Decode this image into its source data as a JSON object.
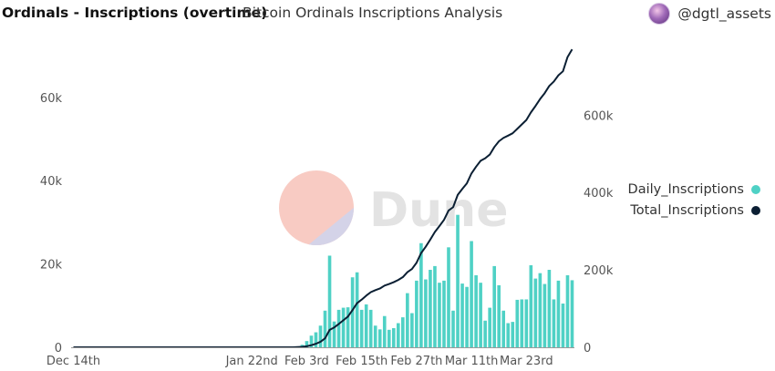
{
  "header": {
    "title": "Ordinals - Inscriptions (overtime)",
    "subtitle": "Bitcoin Ordinals Inscriptions Analysis",
    "user_handle": "@dgtl_assets",
    "avatar_icon": "avatar-icon"
  },
  "watermark": {
    "text": "Dune"
  },
  "colors": {
    "daily": "#4fd1c5",
    "total": "#0b1f33",
    "axis": "#9a9a9a",
    "tick_text": "#555555"
  },
  "chart_data": {
    "type": "bar",
    "x_start": "2022-12-14",
    "x_end": "2023-04-02",
    "x_ticks": [
      "Dec 14th",
      "Jan 22nd",
      "Feb 3rd",
      "Feb 15th",
      "Feb 27th",
      "Mar 11th",
      "Mar 23rd"
    ],
    "x_tick_dates": [
      "2022-12-14",
      "2023-01-22",
      "2023-02-03",
      "2023-02-15",
      "2023-02-27",
      "2023-03-11",
      "2023-03-23"
    ],
    "y_left": {
      "ticks": [
        "0",
        "20k",
        "40k",
        "60k"
      ],
      "tick_values": [
        0,
        20000,
        40000,
        60000
      ],
      "range": [
        0,
        72000
      ]
    },
    "y_right": {
      "ticks": [
        "0",
        "200k",
        "400k",
        "600k"
      ],
      "tick_values": [
        0,
        200000,
        400000,
        600000
      ],
      "range": [
        0,
        775000
      ]
    },
    "series": [
      {
        "name": "Daily_Inscriptions",
        "type": "bar",
        "axis": "left",
        "dates": [
          "2023-02-01",
          "2023-02-02",
          "2023-02-03",
          "2023-02-04",
          "2023-02-05",
          "2023-02-06",
          "2023-02-07",
          "2023-02-08",
          "2023-02-09",
          "2023-02-10",
          "2023-02-11",
          "2023-02-12",
          "2023-02-13",
          "2023-02-14",
          "2023-02-15",
          "2023-02-16",
          "2023-02-17",
          "2023-02-18",
          "2023-02-19",
          "2023-02-20",
          "2023-02-21",
          "2023-02-22",
          "2023-02-23",
          "2023-02-24",
          "2023-02-25",
          "2023-02-26",
          "2023-02-27",
          "2023-02-28",
          "2023-03-01",
          "2023-03-02",
          "2023-03-03",
          "2023-03-04",
          "2023-03-05",
          "2023-03-06",
          "2023-03-07",
          "2023-03-08",
          "2023-03-09",
          "2023-03-10",
          "2023-03-11",
          "2023-03-12",
          "2023-03-13",
          "2023-03-14",
          "2023-03-15",
          "2023-03-16",
          "2023-03-17",
          "2023-03-18",
          "2023-03-19",
          "2023-03-20",
          "2023-03-21",
          "2023-03-22",
          "2023-03-23",
          "2023-03-24",
          "2023-03-25",
          "2023-03-26",
          "2023-03-27",
          "2023-03-28",
          "2023-03-29",
          "2023-03-30",
          "2023-03-31",
          "2023-04-01",
          "2023-04-02"
        ],
        "values": [
          200,
          600,
          1500,
          2800,
          3600,
          5200,
          8800,
          22000,
          6200,
          9000,
          9500,
          9600,
          16800,
          18000,
          9000,
          10300,
          9000,
          5200,
          4300,
          7500,
          4200,
          4600,
          5800,
          7200,
          13000,
          8200,
          16000,
          25000,
          16300,
          18600,
          19500,
          15500,
          16000,
          24000,
          8800,
          31800,
          15300,
          14500,
          25500,
          17300,
          15500,
          6400,
          9500,
          19500,
          14900,
          8800,
          5800,
          6100,
          11400,
          11500,
          11500,
          19700,
          16500,
          17800,
          15200,
          18600,
          11500,
          16000,
          10500,
          17300,
          16100
        ]
      },
      {
        "name": "Total_Inscriptions",
        "type": "line",
        "axis": "right",
        "dates": [
          "2022-12-14",
          "2023-01-31",
          "2023-02-01",
          "2023-02-02",
          "2023-02-03",
          "2023-02-04",
          "2023-02-05",
          "2023-02-06",
          "2023-02-07",
          "2023-02-08",
          "2023-02-09",
          "2023-02-10",
          "2023-02-11",
          "2023-02-12",
          "2023-02-13",
          "2023-02-14",
          "2023-02-15",
          "2023-02-16",
          "2023-02-17",
          "2023-02-18",
          "2023-02-19",
          "2023-02-20",
          "2023-02-21",
          "2023-02-22",
          "2023-02-23",
          "2023-02-24",
          "2023-02-25",
          "2023-02-26",
          "2023-02-27",
          "2023-02-28",
          "2023-03-01",
          "2023-03-02",
          "2023-03-03",
          "2023-03-04",
          "2023-03-05",
          "2023-03-06",
          "2023-03-07",
          "2023-03-08",
          "2023-03-09",
          "2023-03-10",
          "2023-03-11",
          "2023-03-12",
          "2023-03-13",
          "2023-03-14",
          "2023-03-15",
          "2023-03-16",
          "2023-03-17",
          "2023-03-18",
          "2023-03-19",
          "2023-03-20",
          "2023-03-21",
          "2023-03-22",
          "2023-03-23",
          "2023-03-24",
          "2023-03-25",
          "2023-03-26",
          "2023-03-27",
          "2023-03-28",
          "2023-03-29",
          "2023-03-30",
          "2023-03-31",
          "2023-04-01",
          "2023-04-02"
        ],
        "values": [
          0,
          0,
          500,
          1200,
          2700,
          5500,
          9100,
          14300,
          23100,
          45100,
          51300,
          60300,
          69800,
          79400,
          96200,
          114200,
          123200,
          133500,
          142500,
          147700,
          152000,
          159500,
          163700,
          168300,
          174100,
          181300,
          194300,
          202500,
          218500,
          243500,
          259800,
          278400,
          297900,
          313400,
          329400,
          353400,
          362200,
          394000,
          409300,
          423800,
          449300,
          466600,
          482100,
          488500,
          498000,
          517500,
          532400,
          541200,
          547000,
          553100,
          564500,
          576000,
          587500,
          607200,
          623700,
          641500,
          656700,
          675300,
          686800,
          702800,
          713300,
          750000,
          770000
        ]
      }
    ],
    "legend": {
      "placement": "right",
      "entries": [
        "Daily_Inscriptions",
        "Total_Inscriptions"
      ]
    },
    "grid": false
  }
}
